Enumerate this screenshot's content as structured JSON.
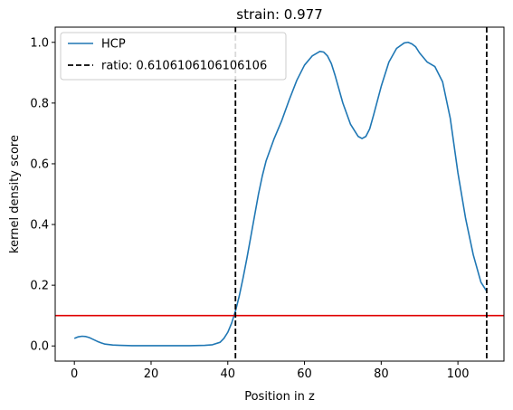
{
  "chart_data": {
    "type": "line",
    "title": "strain: 0.977",
    "xlabel": "Position in z",
    "ylabel": "kernel density score",
    "xlim": [
      -5,
      112
    ],
    "ylim": [
      -0.05,
      1.05
    ],
    "xticks": [
      0,
      20,
      40,
      60,
      80,
      100
    ],
    "yticks": [
      0.0,
      0.2,
      0.4,
      0.6,
      0.8,
      1.0
    ],
    "xtick_labels": [
      "0",
      "20",
      "40",
      "60",
      "80",
      "100"
    ],
    "ytick_labels": [
      "0.0",
      "0.2",
      "0.4",
      "0.6",
      "0.8",
      "1.0"
    ],
    "grid": false,
    "legend_position": "top-left",
    "series": [
      {
        "name": "HCP",
        "color": "#1f77b4",
        "style": "solid",
        "x": [
          0,
          1,
          2,
          3,
          4,
          5,
          6,
          7,
          8,
          10,
          12,
          15,
          20,
          25,
          30,
          34,
          36,
          38,
          39,
          40,
          41,
          42,
          43,
          44,
          45,
          46,
          47,
          48,
          49,
          50,
          51,
          52,
          54,
          56,
          58,
          60,
          62,
          64,
          65,
          66,
          67,
          68,
          70,
          72,
          74,
          75,
          76,
          77,
          78,
          80,
          82,
          84,
          86,
          87,
          88,
          89,
          90,
          92,
          94,
          96,
          98,
          100,
          102,
          104,
          106,
          107.5
        ],
        "y": [
          0.025,
          0.03,
          0.032,
          0.031,
          0.027,
          0.021,
          0.015,
          0.01,
          0.006,
          0.003,
          0.002,
          0.001,
          0.001,
          0.001,
          0.001,
          0.002,
          0.004,
          0.012,
          0.025,
          0.045,
          0.075,
          0.115,
          0.165,
          0.225,
          0.29,
          0.36,
          0.43,
          0.5,
          0.56,
          0.61,
          0.645,
          0.68,
          0.74,
          0.81,
          0.875,
          0.925,
          0.955,
          0.97,
          0.968,
          0.955,
          0.93,
          0.89,
          0.8,
          0.73,
          0.69,
          0.683,
          0.69,
          0.715,
          0.76,
          0.855,
          0.935,
          0.98,
          0.998,
          1.0,
          0.995,
          0.985,
          0.965,
          0.935,
          0.92,
          0.87,
          0.75,
          0.57,
          0.42,
          0.3,
          0.21,
          0.18
        ]
      }
    ],
    "vlines": [
      {
        "name": "ratio: 0.6106106106106106",
        "x": 42,
        "color": "#000000",
        "style": "dashed"
      },
      {
        "x": 107.5,
        "color": "#000000",
        "style": "dashed"
      }
    ],
    "hlines": [
      {
        "y": 0.1,
        "color": "#e00000",
        "style": "solid"
      }
    ],
    "legend": [
      {
        "label": "HCP",
        "color": "#1f77b4",
        "style": "solid"
      },
      {
        "label": "ratio: 0.6106106106106106",
        "color": "#000000",
        "style": "dashed"
      }
    ]
  }
}
